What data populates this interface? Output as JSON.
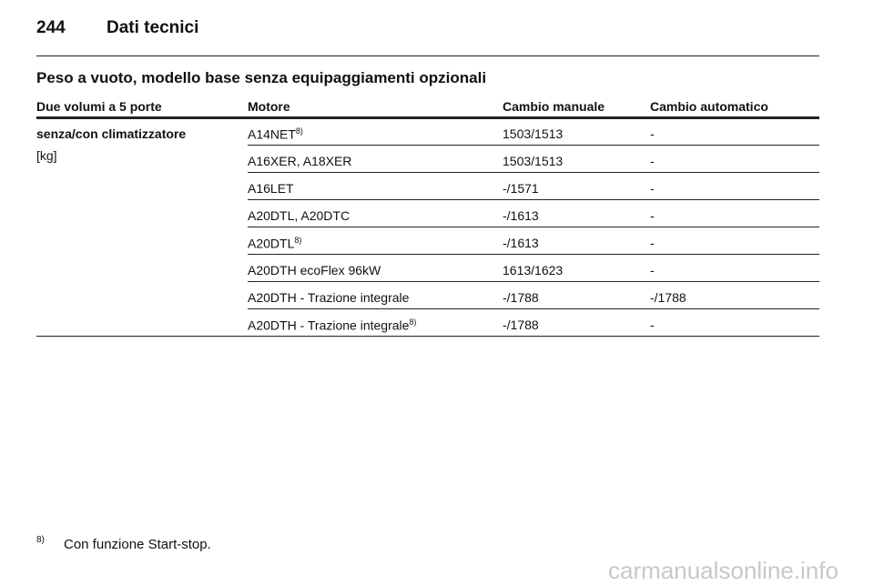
{
  "header": {
    "page_number": "244",
    "title": "Dati tecnici"
  },
  "section_title": "Peso a vuoto, modello base senza equipaggiamenti opzionali",
  "table": {
    "columns": [
      "Due volumi a 5 porte",
      "Motore",
      "Cambio manuale",
      "Cambio automatico"
    ],
    "row_label": "senza/con climatizzatore",
    "unit": "[kg]",
    "rows": [
      {
        "motor": "A14NET",
        "note": "8)",
        "manual": "1503/1513",
        "auto": "-"
      },
      {
        "motor": "A16XER, A18XER",
        "manual": "1503/1513",
        "auto": "-"
      },
      {
        "motor": "A16LET",
        "manual": "-/1571",
        "auto": "-"
      },
      {
        "motor": "A20DTL, A20DTC",
        "manual": "-/1613",
        "auto": "-"
      },
      {
        "motor": "A20DTL",
        "note": "8)",
        "manual": "-/1613",
        "auto": "-"
      },
      {
        "motor": "A20DTH ecoFlex 96kW",
        "manual": "1613/1623",
        "auto": "-"
      },
      {
        "motor": "A20DTH - Trazione integrale",
        "manual": "-/1788",
        "auto": "-/1788"
      },
      {
        "motor": "A20DTH - Trazione integrale",
        "note": "8)",
        "manual": "-/1788",
        "auto": "-"
      }
    ]
  },
  "footnote": {
    "mark": "8)",
    "text": "Con funzione Start-stop."
  },
  "watermark": "carmanualsonline.info"
}
